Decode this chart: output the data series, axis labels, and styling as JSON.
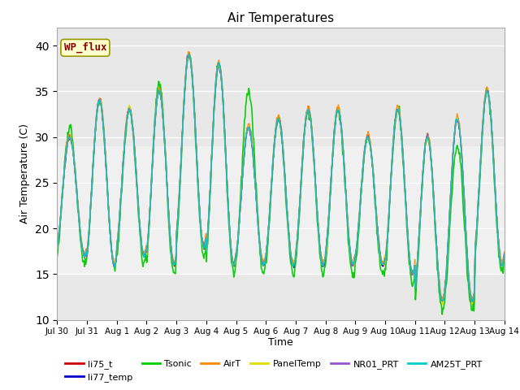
{
  "title": "Air Temperatures",
  "ylabel": "Air Temperature (C)",
  "xlabel": "Time",
  "ylim": [
    10,
    42
  ],
  "yticks": [
    10,
    15,
    20,
    25,
    30,
    35,
    40
  ],
  "plot_bg": "#e8e8e8",
  "series": [
    {
      "name": "li75_t",
      "color": "#cc0000",
      "lw": 1.0
    },
    {
      "name": "li77_temp",
      "color": "#0000cc",
      "lw": 1.0
    },
    {
      "name": "Tsonic",
      "color": "#00cc00",
      "lw": 1.2
    },
    {
      "name": "AirT",
      "color": "#ff8800",
      "lw": 1.0
    },
    {
      "name": "PanelTemp",
      "color": "#dddd00",
      "lw": 1.0
    },
    {
      "name": "NR01_PRT",
      "color": "#9955cc",
      "lw": 1.0
    },
    {
      "name": "AM25T_PRT",
      "color": "#00cccc",
      "lw": 1.0
    }
  ],
  "xtick_labels": [
    "Jul 30",
    "Jul 31",
    "Aug 1",
    "Aug 2",
    "Aug 3",
    "Aug 4",
    "Aug 5",
    "Aug 6",
    "Aug 7",
    "Aug 8",
    "Aug 9",
    "Aug 10",
    "Aug 11",
    "Aug 12",
    "Aug 13",
    "Aug 14"
  ],
  "xtick_positions": [
    0,
    1,
    2,
    3,
    4,
    5,
    6,
    7,
    8,
    9,
    10,
    11,
    12,
    13,
    14,
    15
  ],
  "annotation_text": "WP_flux",
  "shaded_band_lo": 15,
  "shaded_band_hi": 29,
  "day_peak": [
    30,
    34,
    33,
    35,
    39,
    38,
    31,
    32,
    33,
    33,
    30,
    33,
    30,
    32,
    35
  ],
  "day_min": [
    17,
    16,
    17,
    16,
    18,
    16,
    16,
    16,
    16,
    16,
    16,
    15,
    12,
    12,
    16
  ],
  "tsonic_peak": [
    31,
    34,
    33,
    36,
    39,
    38,
    35,
    32,
    33,
    33,
    30,
    33,
    30,
    29,
    35
  ],
  "tsonic_min": [
    16,
    16,
    16,
    15,
    17,
    15,
    15,
    15,
    15,
    15,
    15,
    14,
    11,
    11,
    15
  ]
}
